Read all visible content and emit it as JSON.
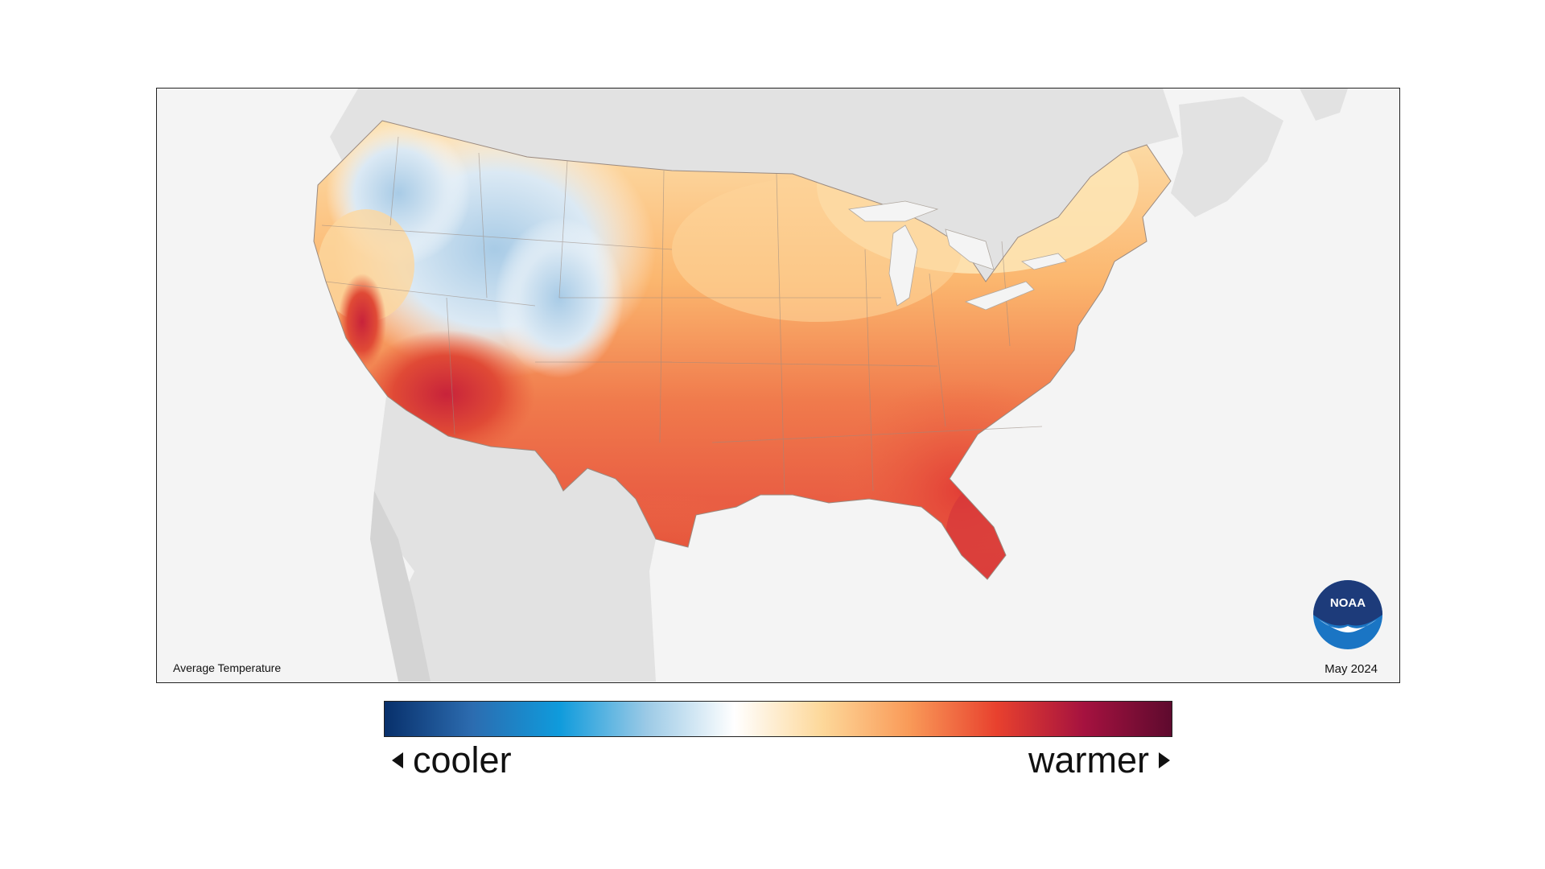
{
  "map": {
    "caption": "Average Temperature",
    "date": "May 2024",
    "logo_text": "NOAA",
    "background_land_color": "#e2e2e2",
    "ocean_color": "#f4f4f4"
  },
  "legend": {
    "low_label": "cooler",
    "high_label": "warmer",
    "colors": [
      "#08306b",
      "#2c6cb0",
      "#0f9bdc",
      "#9ccae6",
      "#ffffff",
      "#fdd89a",
      "#f99a58",
      "#e8412e",
      "#a5123f",
      "#5e0a2e"
    ]
  }
}
